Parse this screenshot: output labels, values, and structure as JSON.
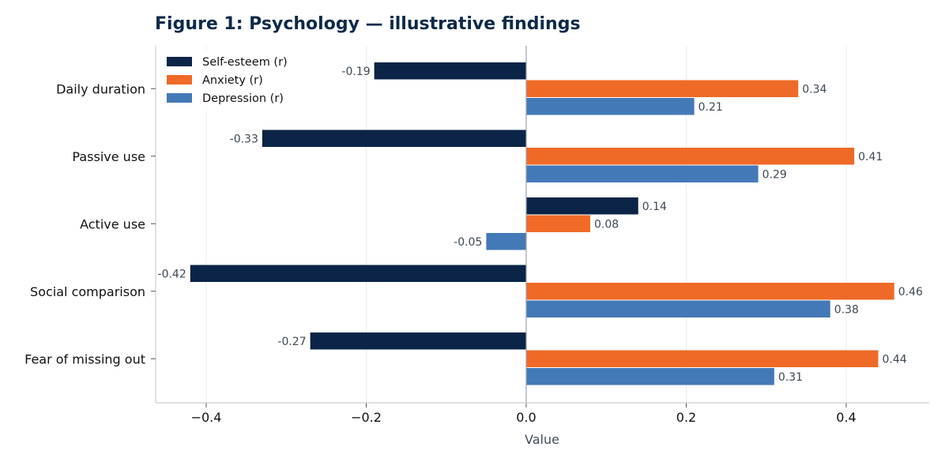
{
  "chart_data": {
    "type": "bar",
    "orientation": "horizontal",
    "title": "Figure 1: Psychology — illustrative findings",
    "xlabel": "Value",
    "ylabel": "",
    "xlim": [
      -0.47,
      0.5
    ],
    "xticks": [
      -0.4,
      -0.2,
      0.0,
      0.2,
      0.4
    ],
    "xtick_labels": [
      "−0.4",
      "−0.2",
      "0.0",
      "0.2",
      "0.4"
    ],
    "grid": "vertical",
    "legend_position": "top-left",
    "categories": [
      "Daily duration",
      "Passive use",
      "Active use",
      "Social comparison",
      "Fear of missing out"
    ],
    "series": [
      {
        "name": "Self-esteem (r)",
        "color": "#0b2447",
        "values": [
          -0.19,
          -0.33,
          0.14,
          -0.42,
          -0.27
        ],
        "labels": [
          "-0.19",
          "-0.33",
          "0.14",
          "-0.42",
          "-0.27"
        ]
      },
      {
        "name": "Anxiety (r)",
        "color": "#ef6a26",
        "values": [
          0.34,
          0.41,
          0.08,
          0.46,
          0.44
        ],
        "labels": [
          "0.34",
          "0.41",
          "0.08",
          "0.46",
          "0.44"
        ]
      },
      {
        "name": "Depression (r)",
        "color": "#4379b7",
        "values": [
          0.21,
          0.29,
          -0.05,
          0.38,
          0.31
        ],
        "labels": [
          "0.21",
          "0.29",
          "-0.05",
          "0.38",
          "0.31"
        ]
      }
    ]
  }
}
